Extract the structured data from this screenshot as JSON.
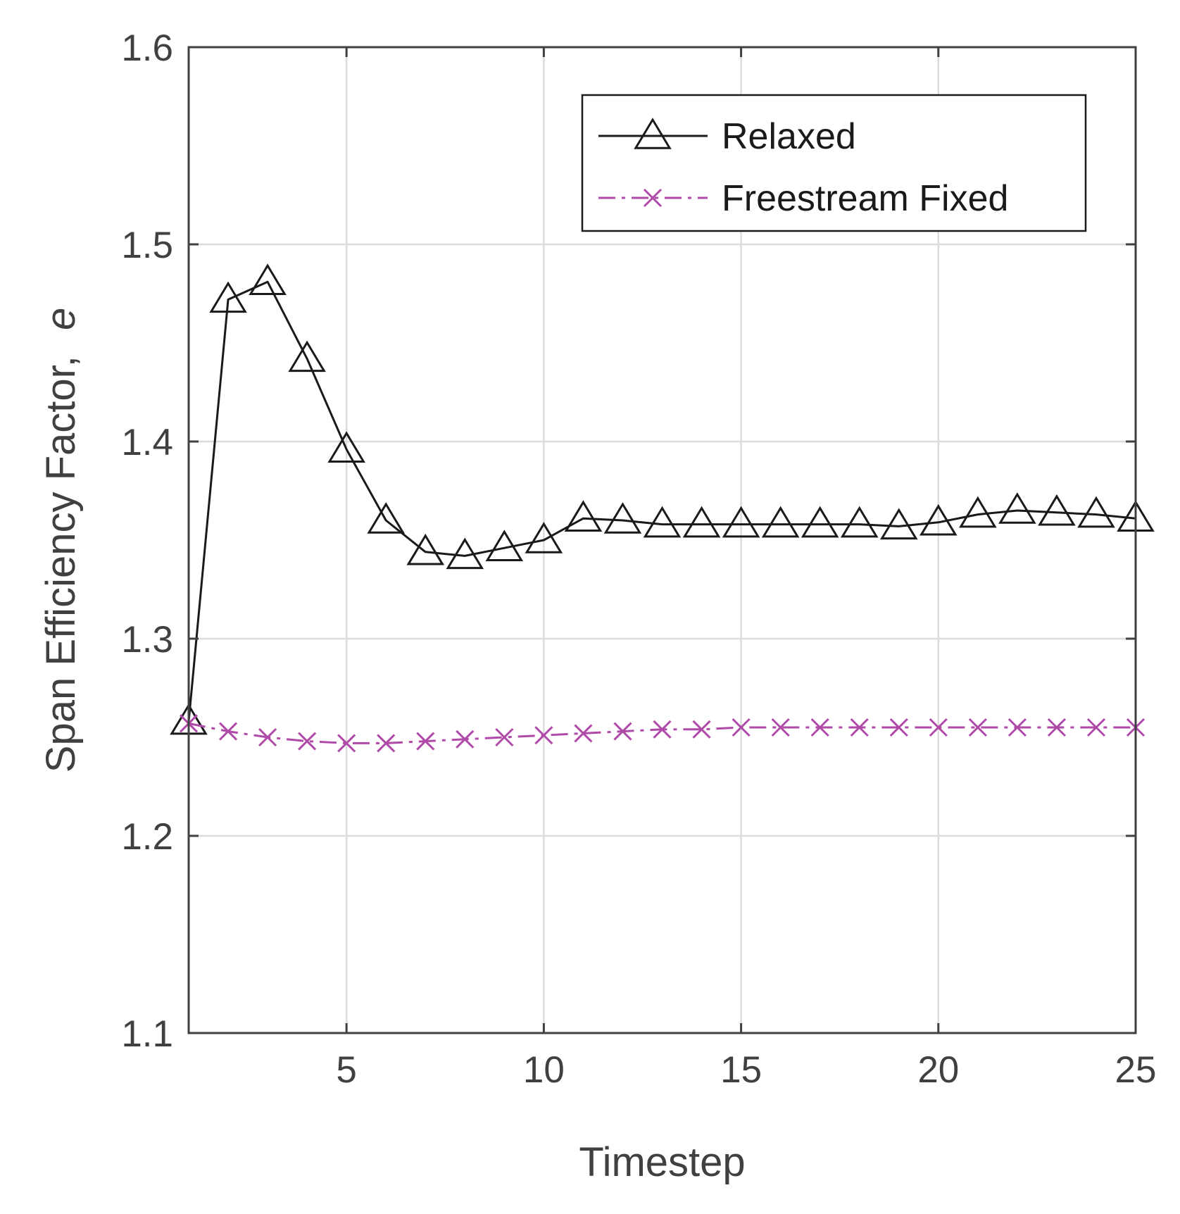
{
  "chart_data": {
    "type": "line",
    "title": "",
    "xlabel": "Timestep",
    "ylabel": "Span Efficiency Factor,",
    "ylabel_symbol": "e",
    "xlim": [
      1,
      25
    ],
    "ylim": [
      1.1,
      1.6
    ],
    "xticks": [
      5,
      10,
      15,
      20,
      25
    ],
    "xtick_labels": [
      "5",
      "10",
      "15",
      "20",
      "25"
    ],
    "yticks": [
      1.1,
      1.2,
      1.3,
      1.4,
      1.5,
      1.6
    ],
    "ytick_labels": [
      "1.1",
      "1.2",
      "1.3",
      "1.4",
      "1.5",
      "1.6"
    ],
    "grid": true,
    "legend_position": "top-right",
    "x": [
      1,
      2,
      3,
      4,
      5,
      6,
      7,
      8,
      9,
      10,
      11,
      12,
      13,
      14,
      15,
      16,
      17,
      18,
      19,
      20,
      21,
      22,
      23,
      24,
      25
    ],
    "series": [
      {
        "name": "Relaxed",
        "color": "#1a1a1a",
        "line_style": "solid",
        "marker": "triangle",
        "values": [
          1.258,
          1.472,
          1.481,
          1.442,
          1.396,
          1.36,
          1.344,
          1.342,
          1.346,
          1.35,
          1.361,
          1.36,
          1.358,
          1.358,
          1.358,
          1.358,
          1.358,
          1.358,
          1.357,
          1.359,
          1.363,
          1.365,
          1.364,
          1.363,
          1.361
        ]
      },
      {
        "name": "Freestream Fixed",
        "color": "#b04aa8",
        "line_style": "dashdot",
        "marker": "x",
        "values": [
          1.257,
          1.253,
          1.25,
          1.248,
          1.247,
          1.247,
          1.248,
          1.249,
          1.25,
          1.251,
          1.252,
          1.253,
          1.254,
          1.254,
          1.255,
          1.255,
          1.255,
          1.255,
          1.255,
          1.255,
          1.255,
          1.255,
          1.255,
          1.255,
          1.255
        ]
      }
    ]
  }
}
